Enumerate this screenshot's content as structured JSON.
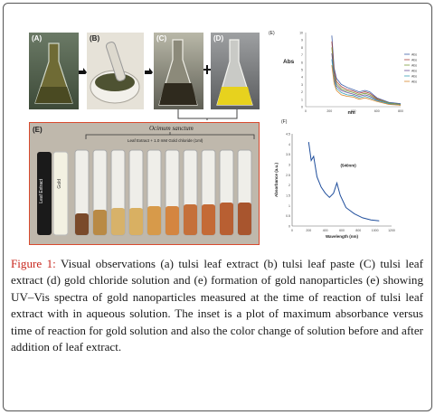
{
  "panels": {
    "a": "(A)",
    "b": "(B)",
    "c": "(C)",
    "d": "(D)",
    "e": "(E)",
    "f": "(F)",
    "top_right": "(E)"
  },
  "tube_panel": {
    "bracket_label": "Ocimum sanctum",
    "bracket_sub": "Leaf Extract + 1.0 mM Gold chloride (1ml)",
    "tube1": "Leaf Extract",
    "tube2": "Gold"
  },
  "plot_top": {
    "ylabel": "Abs",
    "xlabel": "nm",
    "yticks": [
      "0",
      "1",
      "2",
      "3",
      "4",
      "5",
      "6",
      "7",
      "8",
      "9",
      "10"
    ],
    "xticks": [
      "0",
      "200",
      "400",
      "600",
      "800"
    ],
    "legend": [
      "Abs",
      "Abs",
      "Abs",
      "Abs",
      "Abs",
      "Abs"
    ],
    "colors": [
      "#3f5fa8",
      "#a8423c",
      "#7a9c3a",
      "#6a4f96",
      "#3aa0b8",
      "#d8872e"
    ]
  },
  "plot_bottom": {
    "ylabel": "Absorbance (a.u.)",
    "xlabel": "Wavelength (nm)",
    "annotation": "(540nm)",
    "yticks": [
      "0",
      "0.5",
      "1",
      "1.5",
      "2",
      "2.5",
      "3",
      "3.5",
      "4",
      "4.5"
    ],
    "xticks": [
      "0",
      "200",
      "400",
      "600",
      "800",
      "1000",
      "1200"
    ],
    "color": "#1f4e9c"
  },
  "chart_data": [
    {
      "type": "line",
      "ylabel": "Abs",
      "xlabel": "nm",
      "xlim": [
        0,
        800
      ],
      "ylim": [
        0,
        10
      ],
      "x": [
        220,
        240,
        260,
        300,
        350,
        400,
        450,
        500,
        540,
        600,
        700,
        800
      ],
      "series": [
        {
          "name": "Abs",
          "values": [
            9.6,
            5.2,
            3.8,
            3.0,
            2.6,
            2.3,
            2.0,
            2.2,
            2.0,
            1.2,
            0.6,
            0.4
          ]
        },
        {
          "name": "Abs",
          "values": [
            8.8,
            4.8,
            3.4,
            2.7,
            2.3,
            2.1,
            1.8,
            2.0,
            1.8,
            1.1,
            0.5,
            0.3
          ]
        },
        {
          "name": "Abs",
          "values": [
            8.0,
            4.3,
            3.1,
            2.4,
            2.1,
            1.9,
            1.6,
            1.8,
            1.6,
            1.0,
            0.5,
            0.3
          ]
        },
        {
          "name": "Abs",
          "values": [
            7.2,
            3.9,
            2.8,
            2.2,
            1.9,
            1.7,
            1.4,
            1.6,
            1.4,
            0.9,
            0.4,
            0.2
          ]
        },
        {
          "name": "Abs",
          "values": [
            6.4,
            3.5,
            2.5,
            1.9,
            1.6,
            1.5,
            1.2,
            1.4,
            1.2,
            0.8,
            0.4,
            0.2
          ]
        },
        {
          "name": "Abs",
          "values": [
            5.6,
            3.1,
            2.2,
            1.6,
            1.4,
            1.3,
            1.0,
            1.2,
            1.0,
            0.7,
            0.3,
            0.2
          ]
        }
      ]
    },
    {
      "type": "line",
      "ylabel": "Absorbance (a.u.)",
      "xlabel": "Wavelength (nm)",
      "xlim": [
        0,
        1200
      ],
      "ylim": [
        0,
        4.5
      ],
      "x": [
        200,
        230,
        260,
        300,
        350,
        400,
        450,
        500,
        540,
        580,
        650,
        750,
        850,
        950,
        1050
      ],
      "series": [
        {
          "name": "",
          "values": [
            4.1,
            3.2,
            3.4,
            2.4,
            1.9,
            1.6,
            1.4,
            1.6,
            2.1,
            1.5,
            0.9,
            0.6,
            0.4,
            0.3,
            0.25
          ]
        }
      ]
    }
  ],
  "caption": {
    "fig": "Figure 1:",
    "text": " Visual observations (a) tulsi leaf extract (b) tulsi leaf paste (C) tulsi leaf extract (d) gold chloride solution and (e) formation of gold nanoparticles (e) showing UV–Vis spectra of gold nanoparticles measured at the time of reaction of tulsi leaf extract with in aqueous solution. The inset is a plot of maximum absorbance versus time of reaction for gold solution and also the color change of solution before and after addition of leaf extract."
  }
}
